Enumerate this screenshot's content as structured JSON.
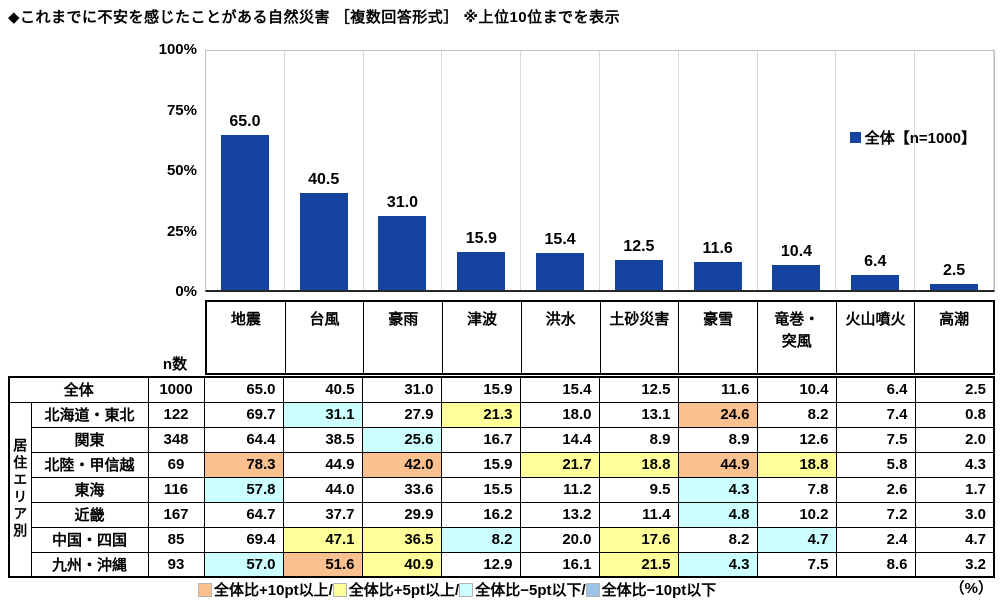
{
  "title": "◆これまでに不安を感じたことがある自然災害 ［複数回答形式］ ※上位10位までを表示",
  "chart_data": {
    "type": "bar",
    "title": "これまでに不安を感じたことがある自然災害（複数回答形式・上位10位）",
    "categories": [
      "地震",
      "台風",
      "豪雨",
      "津波",
      "洪水",
      "土砂災害",
      "豪雪",
      "竜巻・突風",
      "火山噴火",
      "高潮"
    ],
    "values": [
      65.0,
      40.5,
      31.0,
      15.9,
      15.4,
      12.5,
      11.6,
      10.4,
      6.4,
      2.5
    ],
    "value_labels": [
      "65.0",
      "40.5",
      "31.0",
      "15.9",
      "15.4",
      "12.5",
      "11.6",
      "10.4",
      "6.4",
      "2.5"
    ],
    "ylim": [
      0,
      100
    ],
    "yticks": [
      "100%",
      "75%",
      "50%",
      "25%",
      "0%"
    ],
    "legend": "全体【n=1000】",
    "legend_position": "top-right",
    "bar_color": "#1443A0",
    "grid": "vertical category separators only"
  },
  "chart_legend": {
    "label": "全体【n=1000】",
    "color": "#1443A0"
  },
  "table": {
    "n_header": "n数",
    "percent_note": "（%）",
    "group_label": "居住エリア別",
    "columns_display": [
      "地震",
      "台風",
      "豪雨",
      "津波",
      "洪水",
      "土砂災害",
      "豪雪",
      "竜巻・\n突風",
      "火山噴火",
      "高潮"
    ],
    "rows": [
      {
        "label": "全体",
        "n": "1000",
        "values": [
          "65.0",
          "40.5",
          "31.0",
          "15.9",
          "15.4",
          "12.5",
          "11.6",
          "10.4",
          "6.4",
          "2.5"
        ],
        "marks": [
          "",
          "",
          "",
          "",
          "",
          "",
          "",
          "",
          "",
          ""
        ]
      },
      {
        "label": "北海道・東北",
        "n": "122",
        "values": [
          "69.7",
          "31.1",
          "27.9",
          "21.3",
          "18.0",
          "13.1",
          "24.6",
          "8.2",
          "7.4",
          "0.8"
        ],
        "marks": [
          "",
          "minus5",
          "",
          "plus5",
          "",
          "",
          "plus10",
          "",
          "",
          ""
        ]
      },
      {
        "label": "関東",
        "n": "348",
        "values": [
          "64.4",
          "38.5",
          "25.6",
          "16.7",
          "14.4",
          "8.9",
          "8.9",
          "12.6",
          "7.5",
          "2.0"
        ],
        "marks": [
          "",
          "",
          "minus5",
          "",
          "",
          "",
          "",
          "",
          "",
          ""
        ]
      },
      {
        "label": "北陸・甲信越",
        "n": "69",
        "values": [
          "78.3",
          "44.9",
          "42.0",
          "15.9",
          "21.7",
          "18.8",
          "44.9",
          "18.8",
          "5.8",
          "4.3"
        ],
        "marks": [
          "plus10",
          "",
          "plus10",
          "",
          "plus5",
          "plus5",
          "plus10",
          "plus5",
          "",
          ""
        ]
      },
      {
        "label": "東海",
        "n": "116",
        "values": [
          "57.8",
          "44.0",
          "33.6",
          "15.5",
          "11.2",
          "9.5",
          "4.3",
          "7.8",
          "2.6",
          "1.7"
        ],
        "marks": [
          "minus5",
          "",
          "",
          "",
          "",
          "",
          "minus5",
          "",
          "",
          ""
        ]
      },
      {
        "label": "近畿",
        "n": "167",
        "values": [
          "64.7",
          "37.7",
          "29.9",
          "16.2",
          "13.2",
          "11.4",
          "4.8",
          "10.2",
          "7.2",
          "3.0"
        ],
        "marks": [
          "",
          "",
          "",
          "",
          "",
          "",
          "minus5",
          "",
          "",
          ""
        ]
      },
      {
        "label": "中国・四国",
        "n": "85",
        "values": [
          "69.4",
          "47.1",
          "36.5",
          "8.2",
          "20.0",
          "17.6",
          "8.2",
          "4.7",
          "2.4",
          "4.7"
        ],
        "marks": [
          "",
          "plus5",
          "plus5",
          "minus5",
          "",
          "plus5",
          "",
          "minus5",
          "",
          ""
        ]
      },
      {
        "label": "九州・沖縄",
        "n": "93",
        "values": [
          "57.0",
          "51.6",
          "40.9",
          "12.9",
          "16.1",
          "21.5",
          "4.3",
          "7.5",
          "8.6",
          "3.2"
        ],
        "marks": [
          "minus5",
          "plus10",
          "plus5",
          "",
          "",
          "plus5",
          "minus5",
          "",
          "",
          ""
        ]
      }
    ]
  },
  "diff_legend": {
    "items": [
      {
        "key": "plus10",
        "color": "#FAC090",
        "label": "全体比+10pt以上/"
      },
      {
        "key": "plus5",
        "color": "#FFFF99",
        "label": "全体比+5pt以上/"
      },
      {
        "key": "minus5",
        "color": "#CCFFFF",
        "label": "全体比−5pt以下/"
      },
      {
        "key": "minus10",
        "color": "#9CC3E5",
        "label": "全体比−10pt以下"
      }
    ]
  }
}
